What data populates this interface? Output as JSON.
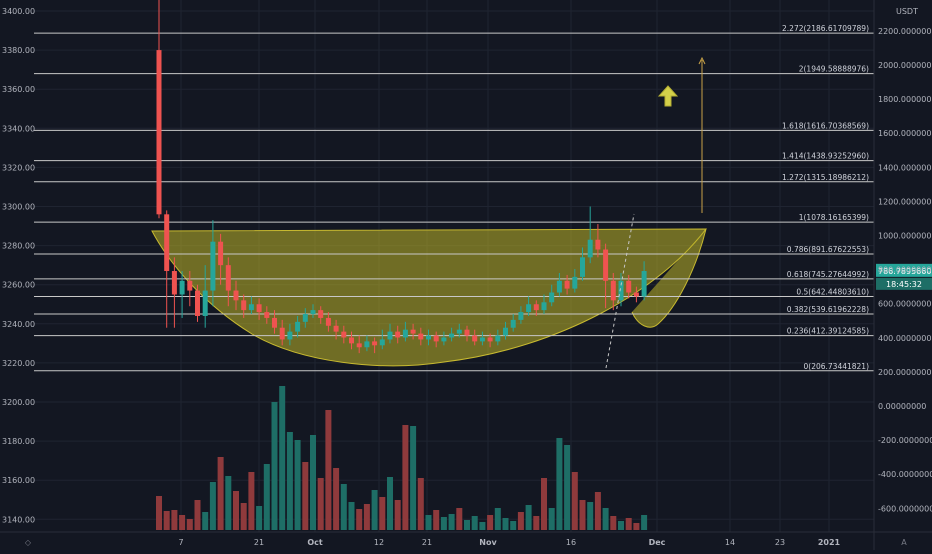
{
  "chart_data": {
    "type": "candlestick",
    "left_axis": {
      "ticks": [
        3140,
        3160,
        3180,
        3200,
        3220,
        3240,
        3260,
        3280,
        3300,
        3320,
        3340,
        3360,
        3380,
        3400
      ],
      "tick_labels": [
        "3140.00",
        "3160.00",
        "3180.00",
        "3200.00",
        "3220.00",
        "3240.00",
        "3260.00",
        "3280.00",
        "3300.00",
        "3320.00",
        "3340.00",
        "3360.00",
        "3380.00",
        "3400.00"
      ]
    },
    "right_axis": {
      "unit": "USDT",
      "ticks": [
        -600,
        -400,
        -200,
        0,
        200,
        400,
        600,
        800,
        1000,
        1200,
        1400,
        1600,
        1800,
        2000,
        2200
      ],
      "tick_labels": [
        "-600.00000000",
        "-400.00000000",
        "-200.00000000",
        "0.00000000",
        "200.00000000",
        "400.00000000",
        "600.00000000",
        "800.00000000",
        "1000.00000000",
        "1200.00000000",
        "1400.00000000",
        "1600.00000000",
        "1800.00000000",
        "2000.00000000",
        "2200.00000000"
      ]
    },
    "x_axis": {
      "tick_labels": [
        "7",
        "21",
        "Oct",
        "12",
        "21",
        "Nov",
        "16",
        "Dec",
        "14",
        "23",
        "2021"
      ]
    },
    "fib_levels": [
      {
        "ratio": "0",
        "value": 206.73441821,
        "label": "0(206.73441821)"
      },
      {
        "ratio": "0.236",
        "value": 412.39124585,
        "label": "0.236(412.39124585)"
      },
      {
        "ratio": "0.382",
        "value": 539.61962228,
        "label": "0.382(539.61962228)"
      },
      {
        "ratio": "0.5",
        "value": 642.4480361,
        "label": "0.5(642.44803610)"
      },
      {
        "ratio": "0.618",
        "value": 745.27644992,
        "label": "0.618(745.27644992)"
      },
      {
        "ratio": "0.786",
        "value": 891.67622553,
        "label": "0.786(891.67622553)"
      },
      {
        "ratio": "1",
        "value": 1078.16165399,
        "label": "1(1078.16165399)"
      },
      {
        "ratio": "1.272",
        "value": 1315.18986212,
        "label": "1.272(1315.18986212)"
      },
      {
        "ratio": "1.414",
        "value": 1438.9325296,
        "label": "1.414(1438.93252960)"
      },
      {
        "ratio": "1.618",
        "value": 1616.70368569,
        "label": "1.618(1616.70368569)"
      },
      {
        "ratio": "2",
        "value": 1949.58888976,
        "label": "2(1949.58888976)"
      },
      {
        "ratio": "2.272",
        "value": 2186.61709789,
        "label": "2.272(2186.61709789)"
      }
    ],
    "price_badge": {
      "value": "786.78956605",
      "countdown": "18:45:32"
    },
    "candles": [
      [
        3380,
        3296,
        3406,
        3294
      ],
      [
        3296,
        3267,
        3298,
        3238
      ],
      [
        3267,
        3255,
        3274,
        3238
      ],
      [
        3255,
        3262,
        3267,
        3243
      ],
      [
        3262,
        3257,
        3267,
        3249
      ],
      [
        3257,
        3244,
        3260,
        3241
      ],
      [
        3244,
        3257,
        3270,
        3238
      ],
      [
        3257,
        3282,
        3293,
        3249
      ],
      [
        3282,
        3270,
        3286,
        3260
      ],
      [
        3270,
        3257,
        3274,
        3249
      ],
      [
        3257,
        3252,
        3262,
        3247
      ],
      [
        3252,
        3247,
        3255,
        3243
      ],
      [
        3247,
        3250,
        3254,
        3245
      ],
      [
        3250,
        3246,
        3253,
        3242
      ],
      [
        3246,
        3243,
        3249,
        3240
      ],
      [
        3243,
        3238,
        3247,
        3235
      ],
      [
        3238,
        3232,
        3242,
        3229
      ],
      [
        3232,
        3236,
        3240,
        3229
      ],
      [
        3236,
        3241,
        3244,
        3233
      ],
      [
        3241,
        3245,
        3248,
        3238
      ],
      [
        3245,
        3247,
        3250,
        3243
      ],
      [
        3247,
        3243,
        3249,
        3240
      ],
      [
        3243,
        3239,
        3246,
        3236
      ],
      [
        3239,
        3236,
        3242,
        3232
      ],
      [
        3236,
        3233,
        3239,
        3230
      ],
      [
        3233,
        3230,
        3236,
        3227
      ],
      [
        3230,
        3228,
        3234,
        3225
      ],
      [
        3228,
        3231,
        3234,
        3226
      ],
      [
        3231,
        3229,
        3233,
        3225
      ],
      [
        3229,
        3232,
        3237,
        3227
      ],
      [
        3232,
        3236,
        3240,
        3230
      ],
      [
        3236,
        3233,
        3239,
        3230
      ],
      [
        3233,
        3237,
        3241,
        3231
      ],
      [
        3237,
        3235,
        3240,
        3232
      ],
      [
        3235,
        3232,
        3238,
        3229
      ],
      [
        3232,
        3234,
        3237,
        3229
      ],
      [
        3234,
        3231,
        3236,
        3228
      ],
      [
        3231,
        3233,
        3236,
        3229
      ],
      [
        3233,
        3235,
        3238,
        3231
      ],
      [
        3235,
        3237,
        3240,
        3233
      ],
      [
        3237,
        3234,
        3239,
        3231
      ],
      [
        3234,
        3231,
        3237,
        3229
      ],
      [
        3231,
        3233,
        3236,
        3229
      ],
      [
        3233,
        3231,
        3235,
        3228
      ],
      [
        3231,
        3234,
        3237,
        3229
      ],
      [
        3234,
        3238,
        3241,
        3232
      ],
      [
        3238,
        3242,
        3245,
        3236
      ],
      [
        3242,
        3246,
        3249,
        3240
      ],
      [
        3246,
        3250,
        3254,
        3244
      ],
      [
        3250,
        3247,
        3252,
        3244
      ],
      [
        3247,
        3251,
        3255,
        3245
      ],
      [
        3251,
        3256,
        3260,
        3249
      ],
      [
        3256,
        3262,
        3266,
        3254
      ],
      [
        3262,
        3258,
        3265,
        3255
      ],
      [
        3258,
        3264,
        3268,
        3256
      ],
      [
        3264,
        3274,
        3279,
        3262
      ],
      [
        3274,
        3283,
        3300,
        3271
      ],
      [
        3283,
        3278,
        3291,
        3274
      ],
      [
        3278,
        3262,
        3281,
        3248
      ],
      [
        3262,
        3252,
        3266,
        3247
      ],
      [
        3252,
        3262,
        3266,
        3249
      ],
      [
        3262,
        3256,
        3265,
        3253
      ],
      [
        3256,
        3254,
        3259,
        3251
      ],
      [
        3254,
        3267,
        3272,
        3252
      ]
    ],
    "volume_bars": [
      [
        34,
        0
      ],
      [
        19,
        0
      ],
      [
        20,
        0
      ],
      [
        15,
        0
      ],
      [
        11,
        0
      ],
      [
        30,
        0
      ],
      [
        18,
        1
      ],
      [
        48,
        1
      ],
      [
        73,
        0
      ],
      [
        54,
        1
      ],
      [
        39,
        0
      ],
      [
        27,
        0
      ],
      [
        58,
        0
      ],
      [
        24,
        1
      ],
      [
        66,
        1
      ],
      [
        128,
        1
      ],
      [
        144,
        1
      ],
      [
        98,
        1
      ],
      [
        90,
        1
      ],
      [
        68,
        0
      ],
      [
        95,
        1
      ],
      [
        52,
        0
      ],
      [
        120,
        0
      ],
      [
        62,
        0
      ],
      [
        46,
        1
      ],
      [
        28,
        1
      ],
      [
        21,
        0
      ],
      [
        26,
        0
      ],
      [
        40,
        1
      ],
      [
        33,
        0
      ],
      [
        53,
        1
      ],
      [
        30,
        0
      ],
      [
        105,
        0
      ],
      [
        104,
        1
      ],
      [
        52,
        0
      ],
      [
        15,
        1
      ],
      [
        20,
        0
      ],
      [
        13,
        1
      ],
      [
        16,
        1
      ],
      [
        22,
        0
      ],
      [
        10,
        1
      ],
      [
        14,
        1
      ],
      [
        8,
        1
      ],
      [
        15,
        0
      ],
      [
        22,
        1
      ],
      [
        12,
        1
      ],
      [
        9,
        1
      ],
      [
        18,
        0
      ],
      [
        25,
        1
      ],
      [
        14,
        0
      ],
      [
        52,
        0
      ],
      [
        22,
        1
      ],
      [
        92,
        1
      ],
      [
        85,
        1
      ],
      [
        58,
        0
      ],
      [
        30,
        0
      ],
      [
        28,
        1
      ],
      [
        38,
        0
      ],
      [
        22,
        1
      ],
      [
        14,
        0
      ],
      [
        9,
        1
      ],
      [
        12,
        0
      ],
      [
        7,
        0
      ],
      [
        15,
        1
      ]
    ]
  }
}
